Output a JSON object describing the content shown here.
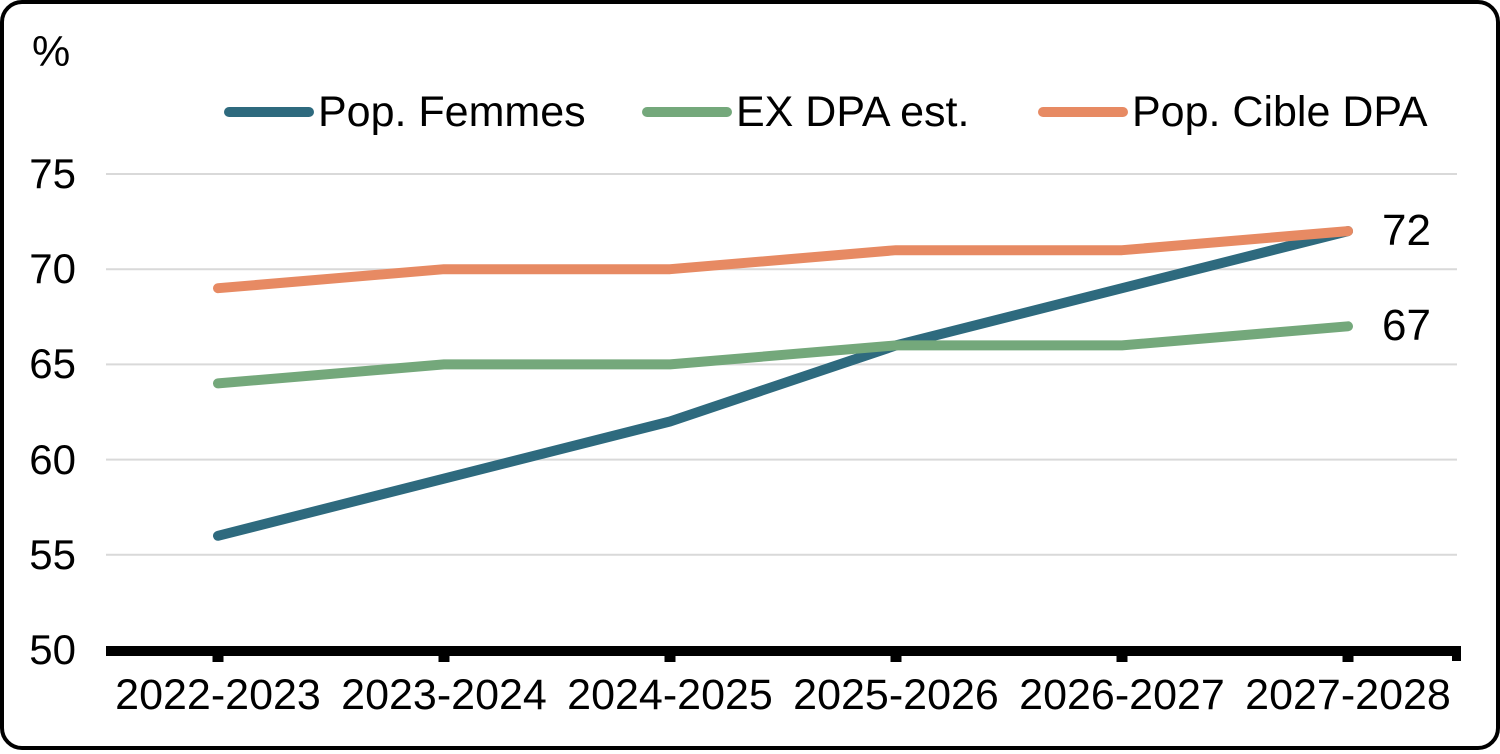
{
  "chart": {
    "unit_label": "%",
    "background": "#ffffff",
    "frame_border_color": "#000000",
    "gridline_color": "#d9d9d9",
    "axis_color": "#000000"
  },
  "chart_data": {
    "type": "line",
    "title": "",
    "xlabel": "",
    "ylabel": "%",
    "categories": [
      "2022-2023",
      "2023-2024",
      "2024-2025",
      "2025-2026",
      "2026-2027",
      "2027-2028"
    ],
    "series": [
      {
        "name": "Pop. Femmes",
        "color": "#2E6A7E",
        "values": [
          56,
          59,
          62,
          66,
          69,
          72
        ]
      },
      {
        "name": "EX DPA est.",
        "color": "#74A87B",
        "values": [
          64,
          65,
          65,
          66,
          66,
          67
        ]
      },
      {
        "name": "Pop. Cible DPA",
        "color": "#E78A63",
        "values": [
          69,
          70,
          70,
          71,
          71,
          72
        ]
      }
    ],
    "ylim": [
      50,
      75
    ],
    "y_ticks": [
      50,
      55,
      60,
      65,
      70,
      75
    ],
    "grid": true,
    "legend_position": "top",
    "annotations": [
      {
        "text": "72",
        "y": 72,
        "refers_to": [
          "Pop. Femmes",
          "Pop. Cible DPA"
        ]
      },
      {
        "text": "67",
        "y": 67,
        "refers_to": [
          "EX DPA est."
        ]
      }
    ]
  }
}
